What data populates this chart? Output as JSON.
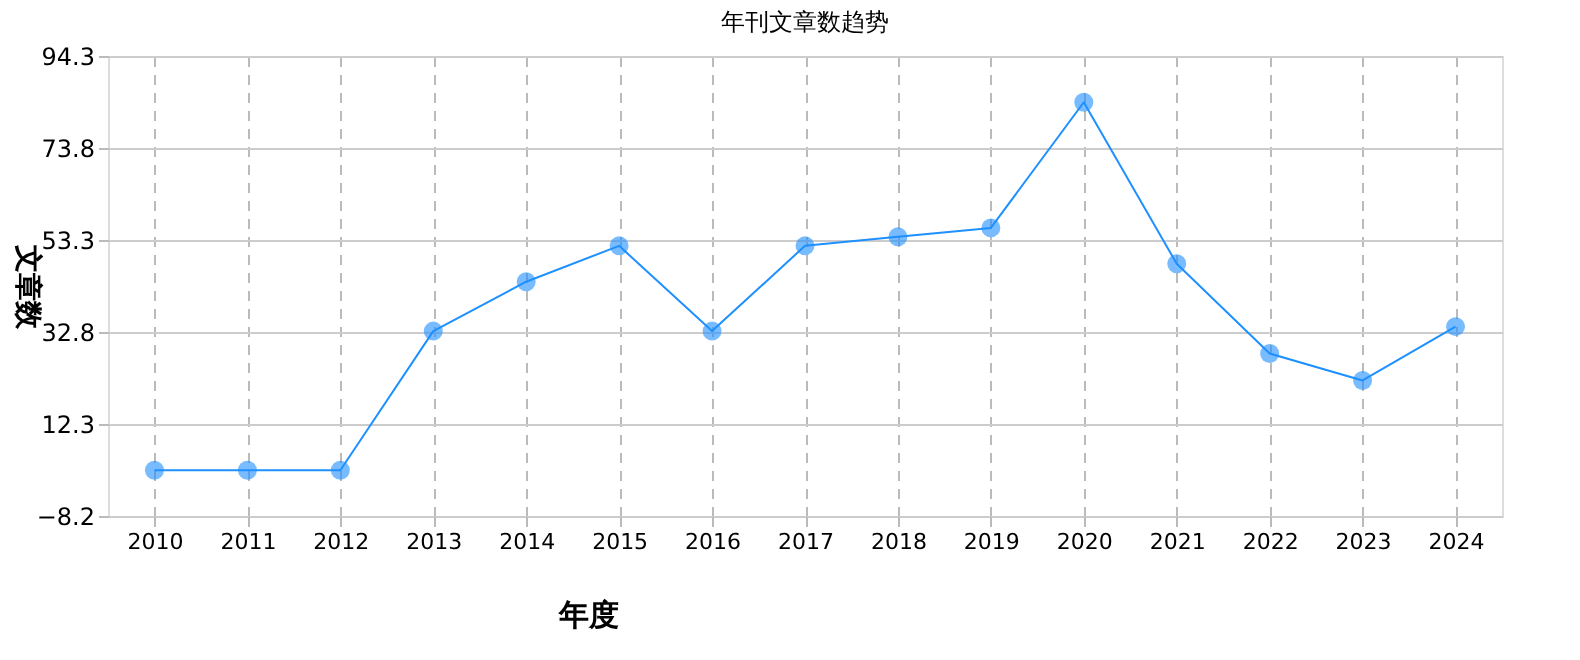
{
  "chart_data": {
    "type": "line",
    "title": "年刊文章数趋势",
    "xlabel": "年度",
    "ylabel": "文章数",
    "categories": [
      "2010",
      "2011",
      "2012",
      "2013",
      "2014",
      "2015",
      "2016",
      "2017",
      "2018",
      "2019",
      "2020",
      "2021",
      "2022",
      "2023",
      "2024"
    ],
    "series": [
      {
        "color": "#1e90ff",
        "values": [
          2,
          2,
          2,
          33,
          44,
          52,
          33,
          52,
          54,
          56,
          84,
          48,
          28,
          22,
          34
        ]
      }
    ],
    "ylim": [
      -8.2,
      94.3
    ],
    "yticks": [
      -8.2,
      12.3,
      32.8,
      53.3,
      73.8,
      94.3
    ],
    "grid": true,
    "marker": "circle",
    "line_style": "solid",
    "legend": false
  }
}
